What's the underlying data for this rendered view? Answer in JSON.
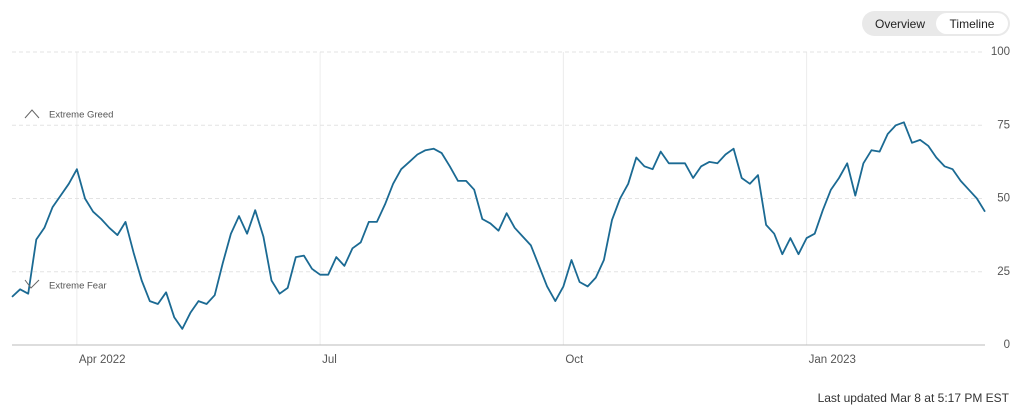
{
  "toggle": {
    "options": [
      "Overview",
      "Timeline"
    ],
    "selected": 1
  },
  "chart_data": {
    "type": "line",
    "categories": [
      null,
      null,
      null,
      null,
      null,
      null,
      null,
      null,
      "Apr 2022",
      null,
      null,
      null,
      null,
      null,
      null,
      null,
      null,
      null,
      null,
      null,
      null,
      null,
      null,
      null,
      null,
      null,
      null,
      null,
      null,
      null,
      null,
      null,
      null,
      null,
      null,
      null,
      null,
      null,
      "Jul",
      null,
      null,
      null,
      null,
      null,
      null,
      null,
      null,
      null,
      null,
      null,
      null,
      null,
      null,
      null,
      null,
      null,
      null,
      null,
      null,
      null,
      null,
      null,
      null,
      null,
      null,
      null,
      null,
      null,
      "Oct",
      null,
      null,
      null,
      null,
      null,
      null,
      null,
      null,
      null,
      null,
      null,
      null,
      null,
      null,
      null,
      null,
      null,
      null,
      null,
      null,
      null,
      null,
      null,
      null,
      null,
      null,
      null,
      null,
      null,
      "Jan 2023",
      null,
      null,
      null,
      null,
      null,
      null,
      null,
      null,
      null,
      null,
      null,
      null,
      null,
      null,
      null,
      null,
      null,
      null,
      null,
      null,
      null,
      null
    ],
    "series": [
      {
        "color": "#1b6a93",
        "values": [
          16.4,
          19,
          17.5,
          36,
          40,
          47,
          51,
          55,
          60,
          50,
          45.5,
          43,
          40,
          37.5,
          42,
          31.5,
          22,
          15,
          14,
          18,
          9.5,
          5.5,
          11,
          15,
          14,
          17,
          28,
          38,
          44,
          38,
          46,
          37,
          22,
          17.5,
          19.5,
          30,
          30.5,
          26,
          24,
          24,
          30,
          27,
          33,
          35,
          42,
          42,
          48,
          55,
          60,
          62.5,
          65,
          66.5,
          67,
          65.5,
          61,
          56,
          56,
          53,
          43,
          41.5,
          39,
          45,
          40,
          37,
          34,
          27,
          20,
          15,
          20,
          29,
          21.5,
          20,
          23,
          29,
          42.7,
          50,
          55,
          64,
          61,
          60,
          66,
          62,
          62,
          62,
          57,
          61,
          62.5,
          62,
          65,
          67,
          57,
          55,
          58,
          41,
          38,
          31,
          36.5,
          31,
          36.5,
          38,
          46,
          53,
          57,
          62,
          51,
          62,
          66.5,
          66,
          72,
          75,
          76,
          69,
          70,
          68,
          64,
          61,
          60,
          56,
          53,
          50,
          45.5
        ]
      }
    ],
    "ylim": [
      0,
      100
    ],
    "yticks": [
      0,
      25,
      50,
      75,
      100
    ],
    "grid": true,
    "annotations": [
      "Extreme Greed",
      "Extreme Fear"
    ],
    "footer": "Last updated Mar 8 at 5:17 PM EST"
  }
}
